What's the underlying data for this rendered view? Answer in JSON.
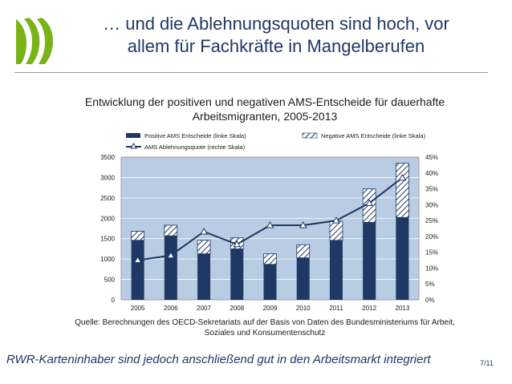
{
  "slide": {
    "title_line1": "… und die Ablehnungsquoten sind hoch, vor",
    "title_line2": "allem für Fachkräfte in Mangelberufen",
    "source_line1": "Quelle: Berechnungen des OECD-Sekretariats auf der Basis von Daten des Bundesministeriums für Arbeit,",
    "source_line2": "Soziales und Konsumentenschutz",
    "footer": "RWR-Karteninhaber sind jedoch anschließend gut in den Arbeitsmarkt integriert",
    "page": "7/11",
    "accent_color": "#1f3864",
    "logo_color": "#7ab317"
  },
  "chart_data": {
    "type": "bar",
    "title_line1": "Entwicklung der positiven und negativen AMS-Entscheide für dauerhafte",
    "title_line2": "Arbeitsmigranten, 2005-2013",
    "categories": [
      "2005",
      "2006",
      "2007",
      "2008",
      "2009",
      "2010",
      "2011",
      "2012",
      "2013"
    ],
    "stacked": true,
    "series": [
      {
        "name": "Positive AMS Entscheide (linke Skala)",
        "axis": "left",
        "values": [
          1460,
          1570,
          1130,
          1250,
          870,
          1030,
          1460,
          1900,
          2020
        ],
        "color": "#1f3864"
      },
      {
        "name": "Negative AMS Entscheide (linke Skala)",
        "axis": "left",
        "values": [
          220,
          260,
          330,
          270,
          260,
          320,
          470,
          820,
          1330
        ],
        "color": "#ffffff",
        "pattern": "diagonal-hatch"
      },
      {
        "name": "AMS Ablehnungsquote (rechte Skala)",
        "axis": "right",
        "type": "line",
        "values": [
          12.5,
          14,
          21.5,
          17.5,
          23.5,
          23.5,
          25,
          30.5,
          38.5
        ],
        "color": "#1f3864",
        "marker": "triangle"
      }
    ],
    "y_left": {
      "min": 0,
      "max": 3500,
      "ticks": [
        "0",
        "500",
        "1000",
        "1500",
        "2000",
        "2500",
        "3000",
        "3500"
      ]
    },
    "y_right": {
      "min": 0,
      "max": 45,
      "ticks": [
        "0%",
        "5%",
        "10%",
        "15%",
        "20%",
        "25%",
        "30%",
        "35%",
        "40%",
        "45%"
      ]
    },
    "plot_background": "#b8cce4",
    "legend_position": "top"
  }
}
